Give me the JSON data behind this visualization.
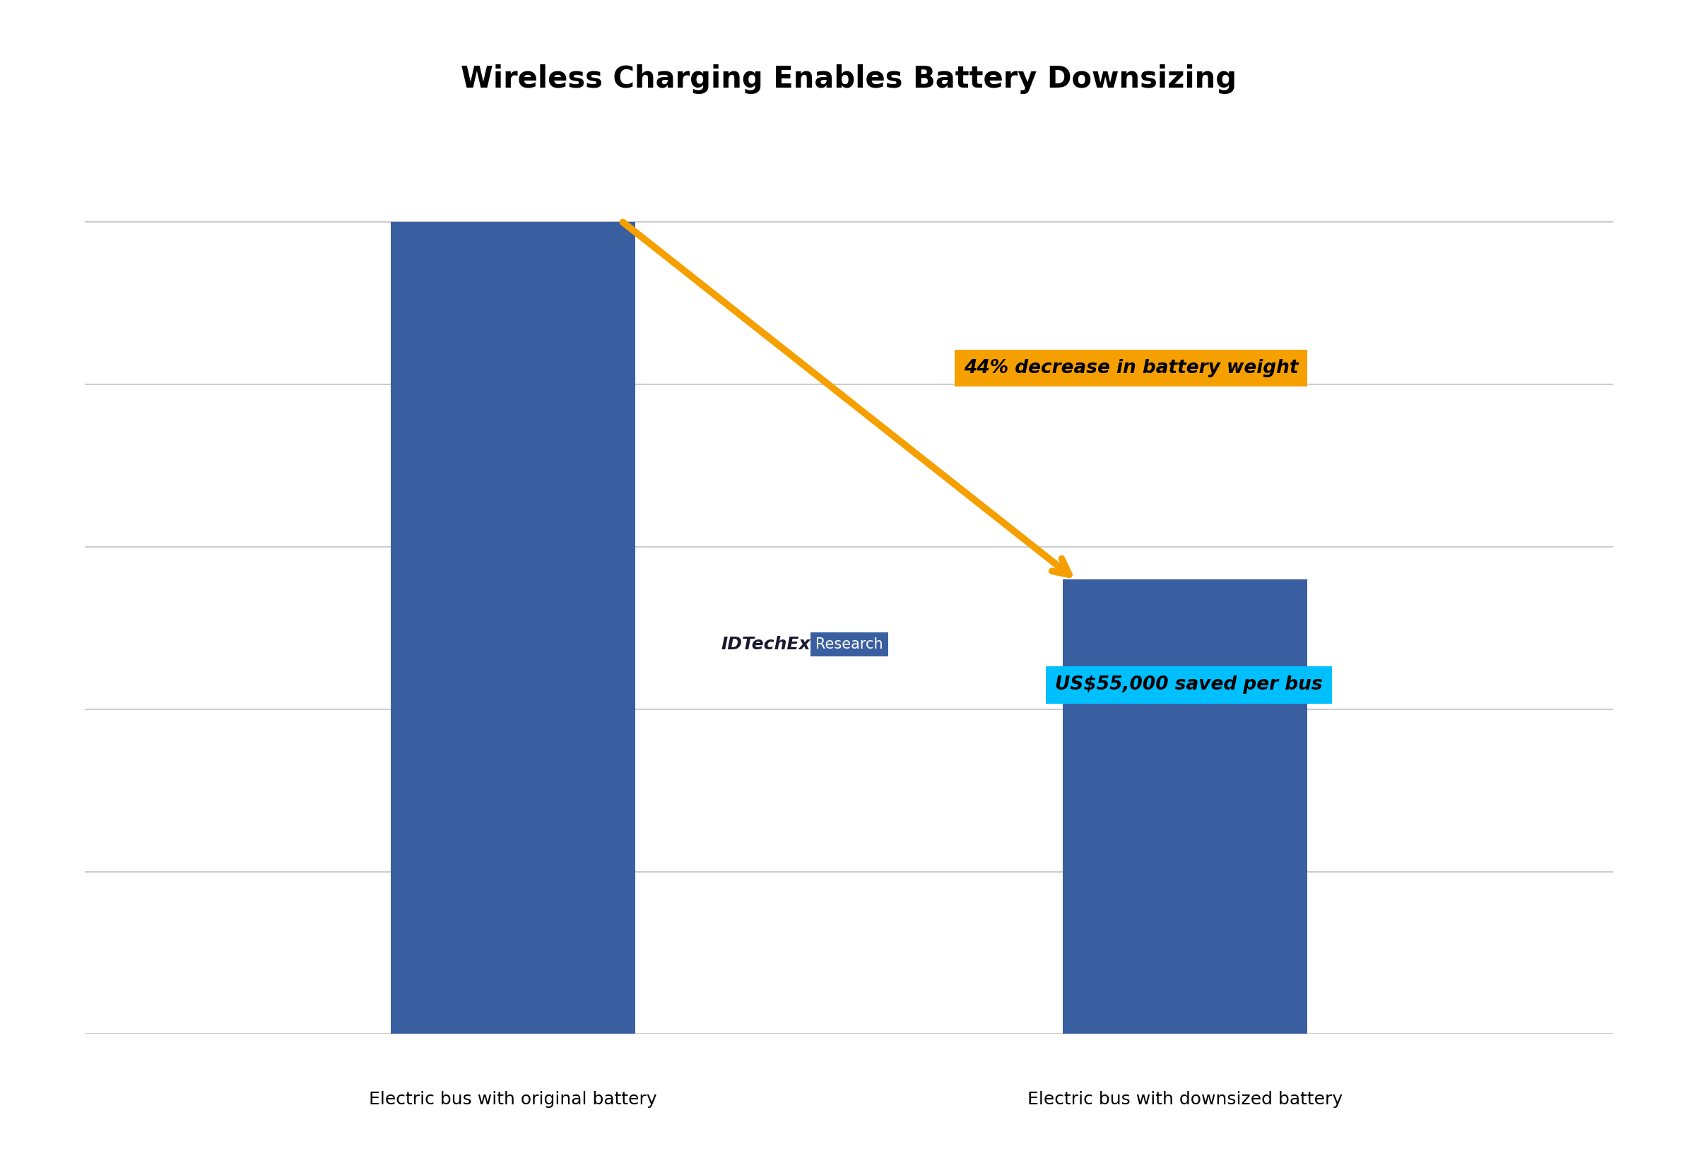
{
  "title": "Wireless Charging Enables Battery Downsizing",
  "bar_labels": [
    "Electric bus with original battery",
    "Electric bus with downsized battery"
  ],
  "bar_values": [
    100,
    56
  ],
  "bar_color": "#3A5FA0",
  "bar_positions": [
    0.28,
    0.72
  ],
  "bar_width": 0.16,
  "annotation_orange_text": "44% decrease in battery weight",
  "annotation_orange_bg": "#F5A000",
  "annotation_cyan_text": "US$55,000 saved per bus",
  "annotation_cyan_bg": "#00BFFF",
  "arrow_color": "#F5A000",
  "background_color": "#FFFFFF",
  "title_fontsize": 30,
  "label_fontsize": 18,
  "idtechex_text": "IDTechEx",
  "research_text": "Research",
  "idtechex_color": "#1A1A2E",
  "research_bg": "#3A5FA0",
  "research_text_color": "#FFFFFF",
  "grid_color": "#CCCCCC",
  "ylim": [
    0,
    110
  ]
}
